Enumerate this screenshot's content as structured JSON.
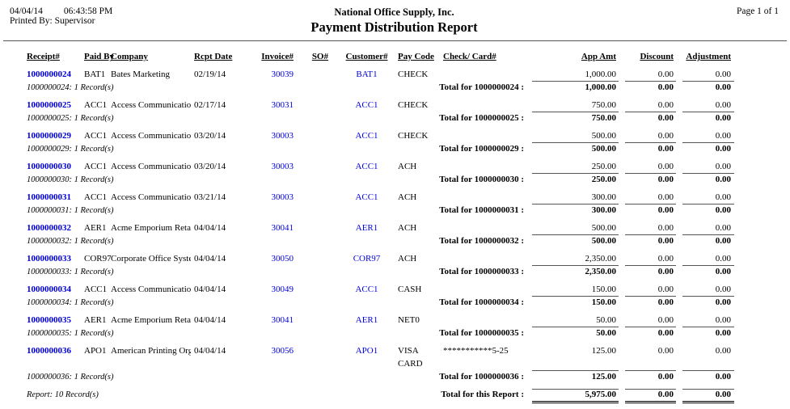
{
  "header": {
    "date": "04/04/14",
    "time": "06:43:58 PM",
    "printed_by": "Printed By: Supervisor",
    "company": "National Office Supply, Inc.",
    "title": "Payment Distribution Report",
    "page": "Page 1 of  1"
  },
  "columns": {
    "receipt": "Receipt#",
    "paid_by": "Paid By",
    "company": "Company",
    "rcpt_date": "Rcpt Date",
    "invoice": "Invoice#",
    "so": "SO#",
    "customer": "Customer#",
    "pay_code": "Pay Code",
    "check_card": "Check/ Card#",
    "app_amt": "App Amt",
    "discount": "Discount",
    "adjustment": "Adjustment"
  },
  "colors": {
    "link_blue": "#0000dd"
  },
  "groups": [
    {
      "receipt": "1000000024",
      "paid_by": "BAT1",
      "company": "Bates Marketing",
      "rcpt_date": "02/19/14",
      "invoice": "30039",
      "so": "",
      "customer": "BAT1",
      "pay_code": "CHECK",
      "check_card": "",
      "app_amt": "1,000.00",
      "discount": "0.00",
      "adjustment": "0.00",
      "records_note": "1000000024: 1 Record(s)",
      "total_label": "Total for 1000000024 :",
      "total_app_amt": "1,000.00",
      "total_discount": "0.00",
      "total_adjustment": "0.00"
    },
    {
      "receipt": "1000000025",
      "paid_by": "ACC1",
      "company": "Access Communication",
      "rcpt_date": "02/17/14",
      "invoice": "30031",
      "so": "",
      "customer": "ACC1",
      "pay_code": "CHECK",
      "check_card": "",
      "app_amt": "750.00",
      "discount": "0.00",
      "adjustment": "0.00",
      "records_note": "1000000025: 1 Record(s)",
      "total_label": "Total for 1000000025 :",
      "total_app_amt": "750.00",
      "total_discount": "0.00",
      "total_adjustment": "0.00"
    },
    {
      "receipt": "1000000029",
      "paid_by": "ACC1",
      "company": "Access Communication",
      "rcpt_date": "03/20/14",
      "invoice": "30003",
      "so": "",
      "customer": "ACC1",
      "pay_code": "CHECK",
      "check_card": "",
      "app_amt": "500.00",
      "discount": "0.00",
      "adjustment": "0.00",
      "records_note": "1000000029: 1 Record(s)",
      "total_label": "Total for 1000000029 :",
      "total_app_amt": "500.00",
      "total_discount": "0.00",
      "total_adjustment": "0.00"
    },
    {
      "receipt": "1000000030",
      "paid_by": "ACC1",
      "company": "Access Communication",
      "rcpt_date": "03/20/14",
      "invoice": "30003",
      "so": "",
      "customer": "ACC1",
      "pay_code": "ACH",
      "check_card": "",
      "app_amt": "250.00",
      "discount": "0.00",
      "adjustment": "0.00",
      "records_note": "1000000030: 1 Record(s)",
      "total_label": "Total for 1000000030 :",
      "total_app_amt": "250.00",
      "total_discount": "0.00",
      "total_adjustment": "0.00"
    },
    {
      "receipt": "1000000031",
      "paid_by": "ACC1",
      "company": "Access Communication",
      "rcpt_date": "03/21/14",
      "invoice": "30003",
      "so": "",
      "customer": "ACC1",
      "pay_code": "ACH",
      "check_card": "",
      "app_amt": "300.00",
      "discount": "0.00",
      "adjustment": "0.00",
      "records_note": "1000000031: 1 Record(s)",
      "total_label": "Total for 1000000031 :",
      "total_app_amt": "300.00",
      "total_discount": "0.00",
      "total_adjustment": "0.00"
    },
    {
      "receipt": "1000000032",
      "paid_by": "AER1",
      "company": "Acme Emporium Retail",
      "rcpt_date": "04/04/14",
      "invoice": "30041",
      "so": "",
      "customer": "AER1",
      "pay_code": "ACH",
      "check_card": "",
      "app_amt": "500.00",
      "discount": "0.00",
      "adjustment": "0.00",
      "records_note": "1000000032: 1 Record(s)",
      "total_label": "Total for 1000000032 :",
      "total_app_amt": "500.00",
      "total_discount": "0.00",
      "total_adjustment": "0.00"
    },
    {
      "receipt": "1000000033",
      "paid_by": "COR97",
      "company": "Corporate Office System",
      "rcpt_date": "04/04/14",
      "invoice": "30050",
      "so": "",
      "customer": "COR97",
      "pay_code": "ACH",
      "check_card": "",
      "app_amt": "2,350.00",
      "discount": "0.00",
      "adjustment": "0.00",
      "records_note": "1000000033: 1 Record(s)",
      "total_label": "Total for 1000000033 :",
      "total_app_amt": "2,350.00",
      "total_discount": "0.00",
      "total_adjustment": "0.00"
    },
    {
      "receipt": "1000000034",
      "paid_by": "ACC1",
      "company": "Access Communication",
      "rcpt_date": "04/04/14",
      "invoice": "30049",
      "so": "",
      "customer": "ACC1",
      "pay_code": "CASH",
      "check_card": "",
      "app_amt": "150.00",
      "discount": "0.00",
      "adjustment": "0.00",
      "records_note": "1000000034: 1 Record(s)",
      "total_label": "Total for 1000000034 :",
      "total_app_amt": "150.00",
      "total_discount": "0.00",
      "total_adjustment": "0.00"
    },
    {
      "receipt": "1000000035",
      "paid_by": "AER1",
      "company": "Acme Emporium Retail",
      "rcpt_date": "04/04/14",
      "invoice": "30041",
      "so": "",
      "customer": "AER1",
      "pay_code": "NET0",
      "check_card": "",
      "app_amt": "50.00",
      "discount": "0.00",
      "adjustment": "0.00",
      "records_note": "1000000035: 1 Record(s)",
      "total_label": "Total for 1000000035 :",
      "total_app_amt": "50.00",
      "total_discount": "0.00",
      "total_adjustment": "0.00"
    },
    {
      "receipt": "1000000036",
      "paid_by": "APO1",
      "company": "American Printing Org",
      "rcpt_date": "04/04/14",
      "invoice": "30056",
      "so": "",
      "customer": "APO1",
      "pay_code": "VISA CARD",
      "check_card": "***********5-25",
      "app_amt": "125.00",
      "discount": "0.00",
      "adjustment": "0.00",
      "records_note": "1000000036: 1 Record(s)",
      "total_label": "Total for 1000000036 :",
      "total_app_amt": "125.00",
      "total_discount": "0.00",
      "total_adjustment": "0.00"
    }
  ],
  "footer": {
    "report_records": "Report: 10 Record(s)",
    "report_total_label": "Total for this Report :",
    "total_app_amt": "5,975.00",
    "total_discount": "0.00",
    "total_adjustment": "0.00"
  }
}
